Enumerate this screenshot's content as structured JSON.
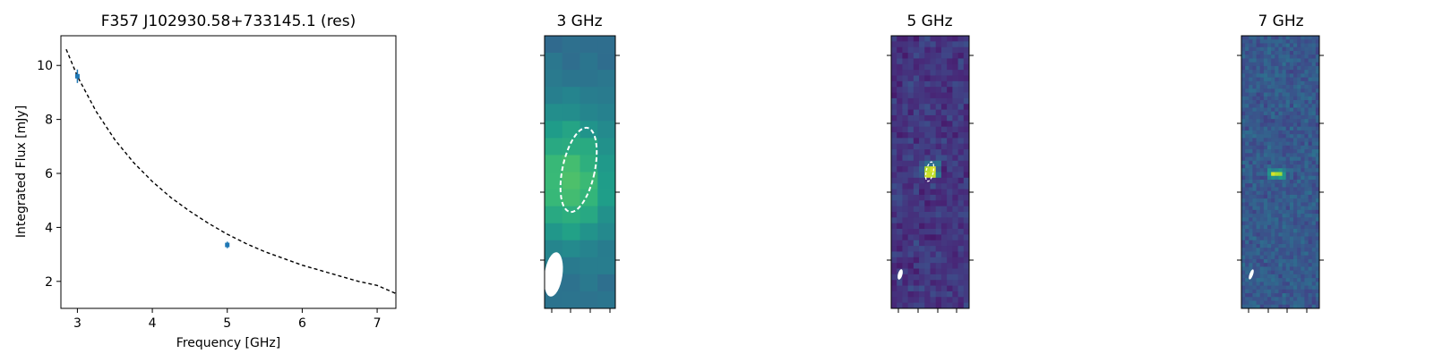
{
  "figure": {
    "background": "#ffffff"
  },
  "chart_data": [
    {
      "type": "scatter",
      "title": "F357 J102930.58+733145.1 (res)",
      "xlabel": "Frequency [GHz]",
      "ylabel": "Integrated Flux [mJy]",
      "xlim": [
        2.78,
        7.25
      ],
      "ylim": [
        1.0,
        11.1
      ],
      "xticks": [
        3,
        4,
        5,
        6,
        7
      ],
      "yticks": [
        2,
        4,
        6,
        8,
        10
      ],
      "grid": false,
      "points": [
        {
          "x": 3.0,
          "y": 9.6,
          "yerr": 0.25
        },
        {
          "x": 5.0,
          "y": 3.35,
          "yerr": 0.12
        }
      ],
      "point_color": "#1f77b4",
      "fit_curve": {
        "style": "dashed",
        "color": "#000000",
        "x": [
          2.85,
          3.0,
          3.25,
          3.5,
          3.75,
          4.0,
          4.25,
          4.5,
          4.75,
          5.0,
          5.25,
          5.5,
          5.75,
          6.0,
          6.25,
          6.5,
          6.75,
          7.0,
          7.25
        ],
        "y": [
          10.6,
          9.6,
          8.3,
          7.25,
          6.4,
          5.7,
          5.1,
          4.6,
          4.15,
          3.75,
          3.4,
          3.1,
          2.85,
          2.6,
          2.4,
          2.2,
          2.0,
          1.85,
          1.55
        ]
      }
    },
    {
      "type": "heatmap",
      "title": "3 GHz",
      "colormap": "viridis",
      "grid_size": [
        4,
        16
      ],
      "peak_rows": [
        6,
        9
      ],
      "peak_cols": [
        0,
        2
      ],
      "source_ellipse": {
        "style": "dashed",
        "color": "#ffffff"
      },
      "beam_ellipse": {
        "color": "#ffffff"
      }
    },
    {
      "type": "heatmap",
      "title": "5 GHz",
      "colormap": "viridis",
      "grid_size": [
        14,
        48
      ],
      "peak_rows": [
        23,
        24
      ],
      "peak_cols": [
        6,
        7
      ],
      "source_ellipse": {
        "style": "dashed",
        "color": "#ffffff"
      },
      "beam_ellipse": {
        "color": "#ffffff"
      }
    },
    {
      "type": "heatmap",
      "title": "7 GHz",
      "colormap": "viridis",
      "grid_size": [
        21,
        72
      ],
      "peak_rows": [
        36,
        36
      ],
      "peak_cols": [
        8,
        10
      ],
      "beam_ellipse": {
        "color": "#ffffff"
      }
    }
  ]
}
